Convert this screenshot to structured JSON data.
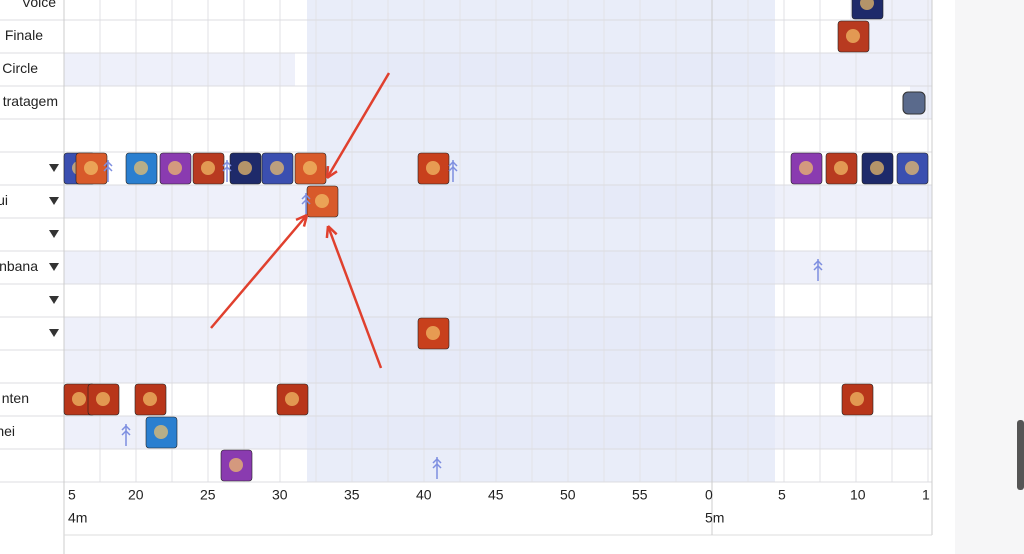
{
  "row_labels": [
    "Voice",
    "Finale",
    "Circle",
    "tratagem",
    "ui",
    "nbana",
    "nten",
    "nei"
  ],
  "axis": {
    "ticks": [
      "5",
      "20",
      "25",
      "30",
      "35",
      "40",
      "45",
      "50",
      "55",
      "0",
      "5",
      "10",
      "1"
    ],
    "minutes": [
      "4m",
      "5m"
    ]
  }
}
